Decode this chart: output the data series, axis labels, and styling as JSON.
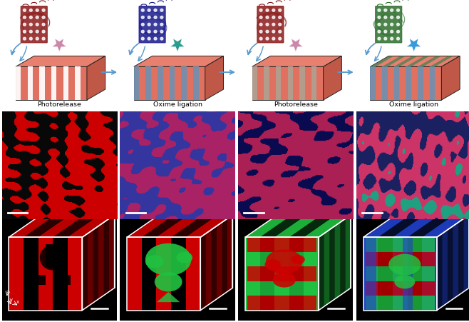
{
  "figure_width": 6.58,
  "figure_height": 4.51,
  "dpi": 100,
  "background": "#ffffff",
  "labels_row1": [
    "Photorelease",
    "Oxime ligation",
    "Photorelease",
    "Oxime ligation"
  ],
  "label_fontsize": 7,
  "protein_colors": [
    "#8b1a1a",
    "#1a1a8b",
    "#8b1a1a",
    "#2d6e2d"
  ],
  "star_colors": [
    "#cc88aa",
    "#2a9d8f",
    "#cc88aa",
    "#3a9ad9"
  ],
  "stripe_combos": [
    [
      "#e06050",
      "#ffffff",
      null
    ],
    [
      "#e06050",
      "#7090b0",
      null
    ],
    [
      "#e06050",
      "#b0a090",
      null
    ],
    [
      "#e06050",
      "#7090b0",
      "#3a8050"
    ]
  ],
  "mid_panel_colors": [
    {
      "bg": "#080808",
      "fg": "#cc0000",
      "fg2": null
    },
    {
      "bg": "#3535a0",
      "fg": "#aa2266",
      "fg2": null
    },
    {
      "bg": "#0a0a50",
      "fg": "#aa2055",
      "fg2": null
    },
    {
      "bg": "#1a2060",
      "fg": "#cc3366",
      "fg2": "#20a080"
    }
  ],
  "bot_panel_colors": [
    {
      "bg": "#000000",
      "stripe": "#cc0000",
      "accent": "#000000",
      "accent2": null
    },
    {
      "bg": "#000000",
      "stripe": "#cc0000",
      "accent": "#20c040",
      "accent2": null
    },
    {
      "bg": "#000000",
      "stripe": "#20c040",
      "accent": "#cc0000",
      "accent2": null
    },
    {
      "bg": "#000000",
      "stripe": "#2040cc",
      "accent": "#cc0000",
      "accent2": "#20c040"
    }
  ]
}
